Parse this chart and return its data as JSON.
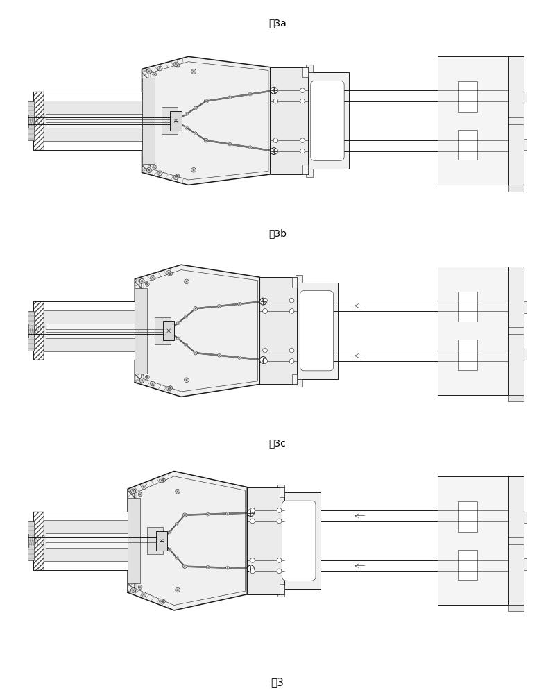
{
  "title": "图3",
  "sub_titles": [
    "图3a",
    "图3b",
    "图3c"
  ],
  "bg_color": "#ffffff",
  "line_color": "#1a1a1a",
  "fig_width": 8.0,
  "fig_height": 10.08,
  "lw_thin": 0.4,
  "lw_med": 0.7,
  "lw_thick": 1.1,
  "lw_vthick": 1.5
}
